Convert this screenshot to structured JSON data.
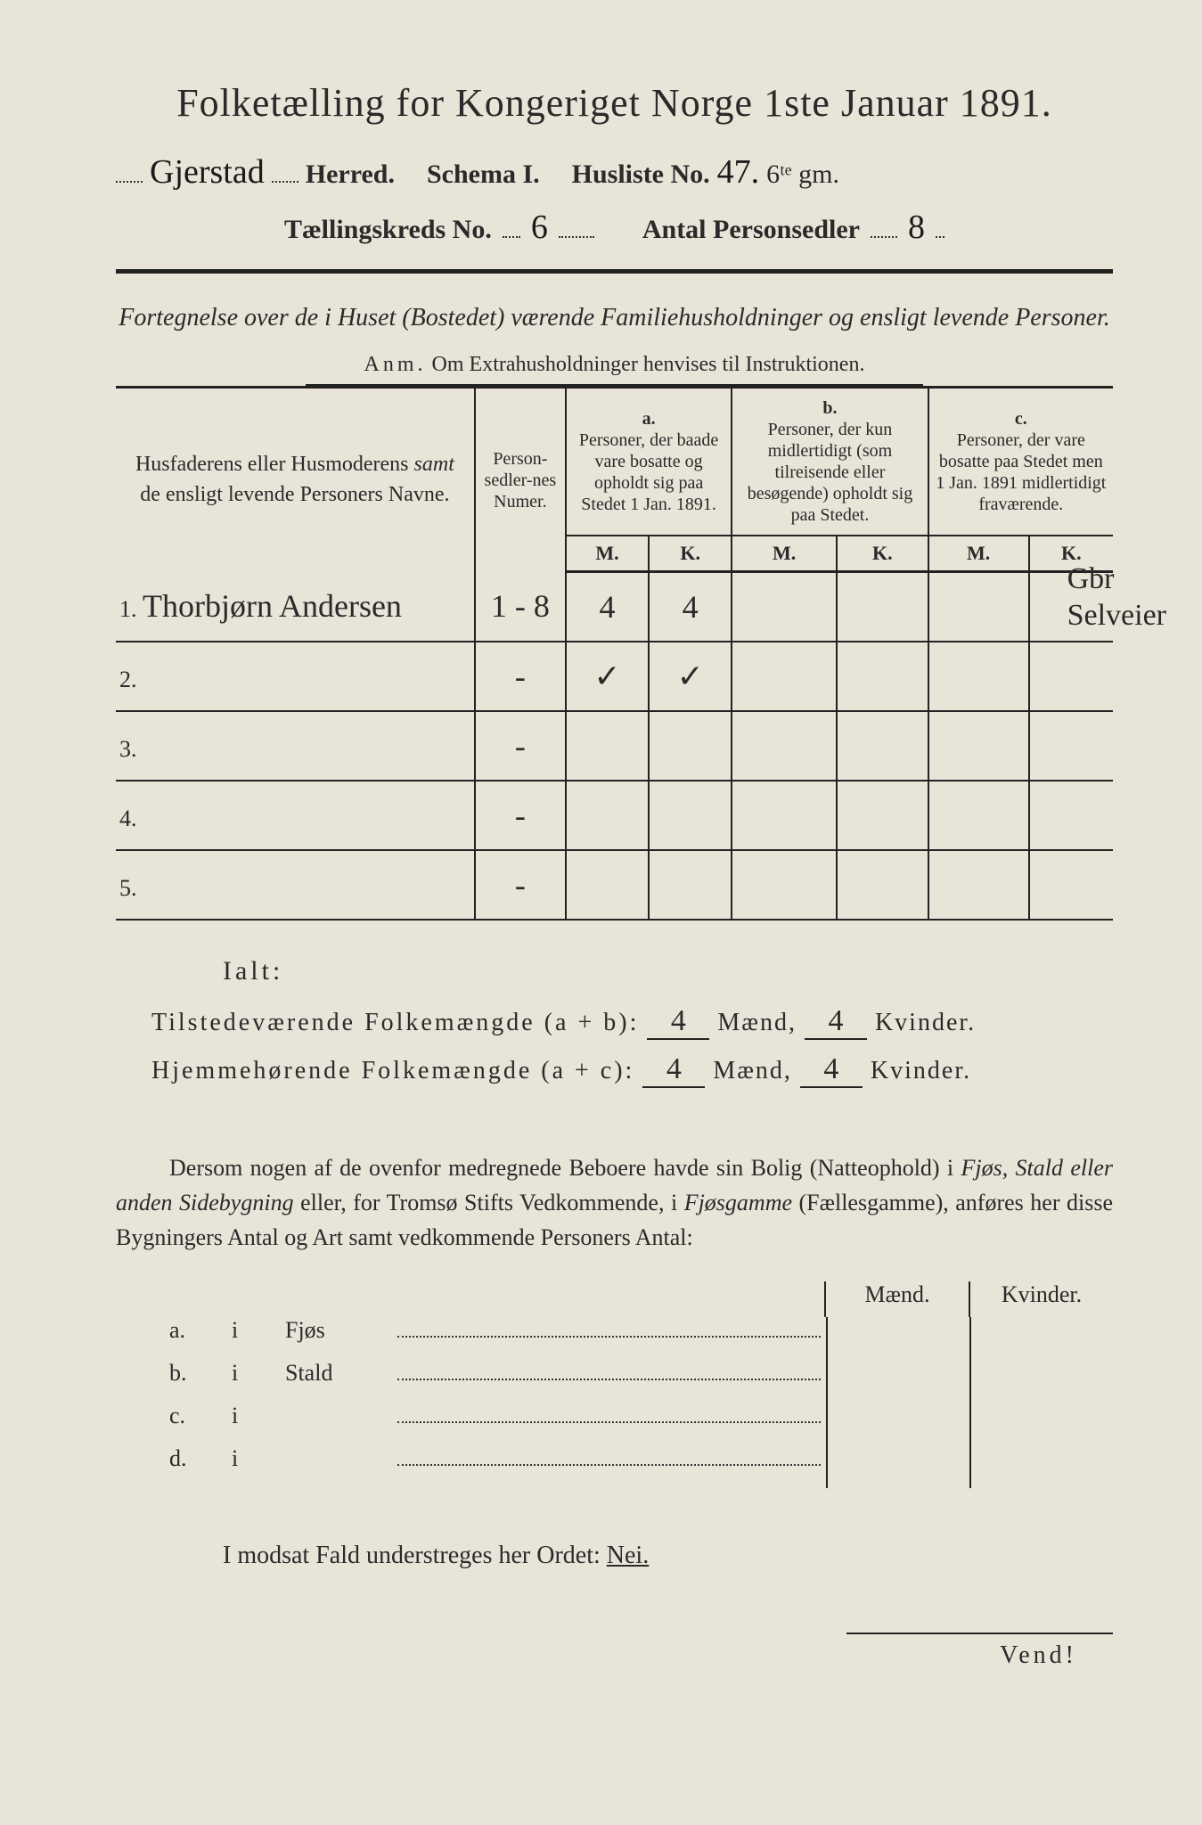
{
  "title": "Folketælling for Kongeriget Norge 1ste Januar 1891.",
  "header": {
    "herred_hand": "Gjerstad",
    "herred_label": "Herred.",
    "schema_label": "Schema I.",
    "husliste_label": "Husliste No.",
    "husliste_hand": "47.",
    "husliste_extra": "6ᵗᵉ gm.",
    "kreds_label": "Tællingskreds No.",
    "kreds_hand": "6",
    "antal_label": "Antal Personsedler",
    "antal_hand": "8"
  },
  "subtitle": "Fortegnelse over de i Huset (Bostedet) værende Familiehusholdninger og ensligt levende Personer.",
  "anm_label": "Anm.",
  "anm_text": "Om Extrahusholdninger henvises til Instruktionen.",
  "columns": {
    "names": "Husfaderens eller Husmoderens <i>samt</i> de ensligt levende Personers Navne.",
    "numer": "Person-sedler-nes Numer.",
    "a_label": "a.",
    "a_text": "Personer, der baade vare bosatte og opholdt sig paa Stedet 1 Jan. 1891.",
    "b_label": "b.",
    "b_text": "Personer, der kun midlertidigt (som tilreisende eller besøgende) opholdt sig paa Stedet.",
    "c_label": "c.",
    "c_text": "Personer, der vare bosatte paa Stedet men 1 Jan. 1891 midlertidigt fraværende.",
    "m": "M.",
    "k": "K."
  },
  "rows": [
    {
      "n": "1.",
      "name": "Thorbjørn Andersen",
      "numer": "1 - 8",
      "am": "4",
      "ak": "4",
      "bm": "",
      "bk": "",
      "cm": "",
      "ck": ""
    },
    {
      "n": "2.",
      "name": "",
      "numer": "-",
      "am": "✓",
      "ak": "✓",
      "bm": "",
      "bk": "",
      "cm": "",
      "ck": ""
    },
    {
      "n": "3.",
      "name": "",
      "numer": "-",
      "am": "",
      "ak": "",
      "bm": "",
      "bk": "",
      "cm": "",
      "ck": ""
    },
    {
      "n": "4.",
      "name": "",
      "numer": "-",
      "am": "",
      "ak": "",
      "bm": "",
      "bk": "",
      "cm": "",
      "ck": ""
    },
    {
      "n": "5.",
      "name": "",
      "numer": "-",
      "am": "",
      "ak": "",
      "bm": "",
      "bk": "",
      "cm": "",
      "ck": ""
    }
  ],
  "margin_note": "Gbr\nSelveier",
  "ialt": "Ialt:",
  "summary": {
    "line1_label": "Tilstedeværende Folkemængde (a + b):",
    "line2_label": "Hjemmehørende Folkemængde (a + c):",
    "maend": "Mænd,",
    "kvinder": "Kvinder.",
    "v1m": "4",
    "v1k": "4",
    "v2m": "4",
    "v2k": "4"
  },
  "para": "Dersom nogen af de ovenfor medregnede Beboere havde sin Bolig (Natteophold) i <i>Fjøs, Stald eller anden Sidebygning</i> eller, for Tromsø Stifts Vedkommende, i <i>Fjøsgamme</i> (Fællesgamme), anføres her disse Bygningers Antal og Art samt vedkommende Personers Antal:",
  "bldg": {
    "maend": "Mænd.",
    "kvinder": "Kvinder.",
    "rows": [
      {
        "l": "a.",
        "i": "i",
        "name": "Fjøs"
      },
      {
        "l": "b.",
        "i": "i",
        "name": "Stald"
      },
      {
        "l": "c.",
        "i": "i",
        "name": ""
      },
      {
        "l": "d.",
        "i": "i",
        "name": ""
      }
    ]
  },
  "modsat": "I modsat Fald understreges her Ordet:",
  "nei": "Nei.",
  "vend": "Vend!"
}
